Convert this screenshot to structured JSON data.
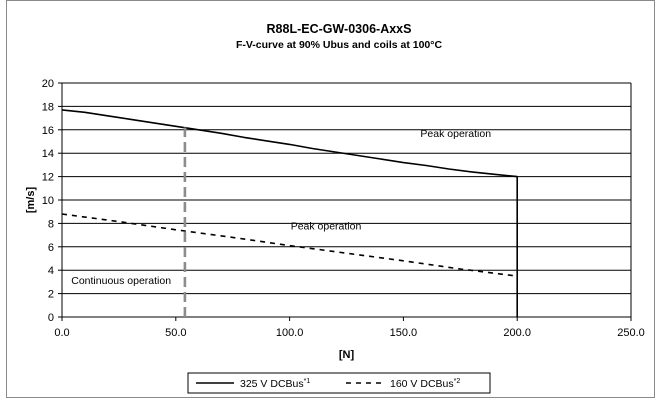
{
  "chart_data": {
    "type": "line",
    "title": "R88L-EC-GW-0306-AxxS",
    "subtitle": "F-V-curve at 90% Ubus and coils at 100°C",
    "xlabel": "[N]",
    "ylabel": "[m/s]",
    "xlim": [
      0,
      250
    ],
    "ylim": [
      0,
      20
    ],
    "x_ticks": [
      "0.0",
      "50.0",
      "100.0",
      "150.0",
      "200.0",
      "250.0"
    ],
    "y_ticks": [
      "0",
      "2",
      "4",
      "6",
      "8",
      "10",
      "12",
      "14",
      "16",
      "18",
      "20"
    ],
    "grid": "horizontal",
    "legend_position": "bottom",
    "series": [
      {
        "name": "325 V DCBus",
        "name_superscript": "*1",
        "style": "solid",
        "color": "#000000",
        "x": [
          0,
          10,
          20,
          30,
          40,
          50,
          60,
          70,
          80,
          90,
          100,
          110,
          120,
          130,
          140,
          150,
          160,
          170,
          180,
          190,
          200,
          200
        ],
        "y": [
          17.7,
          17.5,
          17.2,
          16.9,
          16.6,
          16.3,
          16.0,
          15.7,
          15.35,
          15.05,
          14.75,
          14.4,
          14.1,
          13.8,
          13.5,
          13.2,
          12.95,
          12.65,
          12.4,
          12.2,
          12.0,
          0
        ]
      },
      {
        "name": "160 V DCBus",
        "name_superscript": "*2",
        "style": "dashed",
        "color": "#000000",
        "x": [
          0,
          25,
          50,
          75,
          100,
          125,
          150,
          175,
          200
        ],
        "y": [
          8.8,
          8.15,
          7.45,
          6.8,
          6.1,
          5.45,
          4.8,
          4.1,
          3.5
        ]
      },
      {
        "name": "",
        "style": "dash-gray",
        "color": "#8c8c8c",
        "x": [
          54,
          54
        ],
        "y": [
          0,
          16.2
        ]
      }
    ],
    "annotations": [
      {
        "text": "Peak operation",
        "x": 173,
        "y": 15.4
      },
      {
        "text": "Peak operation",
        "x": 116,
        "y": 7.5
      },
      {
        "text": "Continuous operation",
        "x": 26,
        "y": 2.8
      }
    ]
  }
}
